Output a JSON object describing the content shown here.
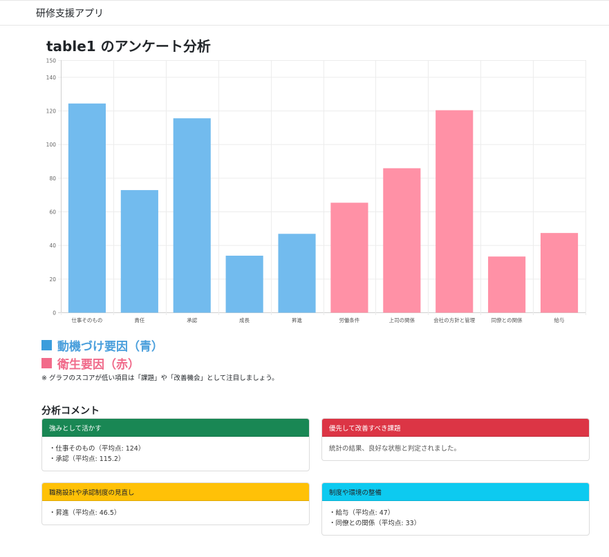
{
  "app": {
    "brand": "研修支援アプリ"
  },
  "page": {
    "title": "table1 のアンケート分析"
  },
  "chart_data": {
    "type": "bar",
    "categories": [
      "仕事そのもの",
      "責任",
      "承認",
      "成長",
      "昇進",
      "労働条件",
      "上司の関係",
      "会社の方針と管理",
      "同僚との関係",
      "給与"
    ],
    "values": [
      124,
      72.5,
      115.2,
      33.5,
      46.5,
      65,
      85.5,
      120,
      33,
      47
    ],
    "bar_colors": [
      "#72bbee",
      "#72bbee",
      "#72bbee",
      "#72bbee",
      "#72bbee",
      "#ff91a6",
      "#ff91a6",
      "#ff91a6",
      "#ff91a6",
      "#ff91a6"
    ],
    "ylim": [
      0,
      150
    ],
    "yticks": [
      0,
      20,
      40,
      60,
      80,
      100,
      120,
      140,
      150
    ],
    "grid": true
  },
  "legend": {
    "motivation": "動機づけ要因（青）",
    "hygiene": "衛生要因（赤）",
    "colors": {
      "blue": "#3b9ddc",
      "red": "#f26b8a"
    }
  },
  "note": "※ グラフのスコアが低い項目は「課題」や「改善機会」として注目しましょう。",
  "analysis": {
    "title": "分析コメント",
    "strengths": {
      "header": "強みとして活かす",
      "items": [
        "・仕事そのもの（平均点: 124）",
        "・承認（平均点: 115.2）"
      ]
    },
    "priority": {
      "header": "優先して改善すべき課題",
      "text": "統計の結果、良好な状態と判定されました。"
    },
    "job_design": {
      "header": "職務設計や承認制度の見直し",
      "items": [
        "・昇進（平均点: 46.5）"
      ]
    },
    "environment": {
      "header": "制度や環境の整備",
      "items": [
        "・給与（平均点: 47）",
        "・同僚との関係（平均点: 33）"
      ]
    }
  }
}
